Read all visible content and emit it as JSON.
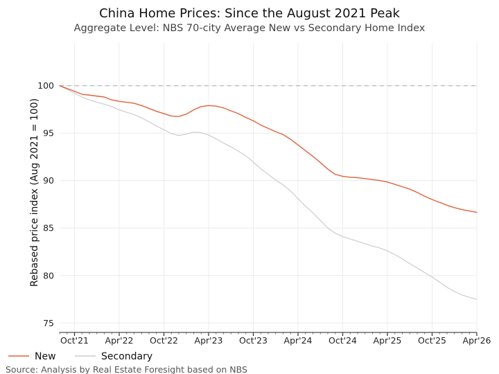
{
  "chart_data": {
    "type": "line",
    "title": "China Home Prices: Since the August 2021 Peak",
    "subtitle": "Aggregate Level: NBS 70-city Average New vs Secondary Home Index",
    "xlabel": "",
    "ylabel": "Rebased price index (Aug 2021 = 100)",
    "ylim": [
      74,
      104.5
    ],
    "yticks": [
      75,
      80,
      85,
      90,
      95,
      100
    ],
    "xlim": [
      "2021-08",
      "2026-04"
    ],
    "xticks": [
      {
        "date": "2021-10",
        "label": "Oct'21"
      },
      {
        "date": "2022-04",
        "label": "Apr'22"
      },
      {
        "date": "2022-10",
        "label": "Oct'22"
      },
      {
        "date": "2023-04",
        "label": "Apr'23"
      },
      {
        "date": "2023-10",
        "label": "Oct'23"
      },
      {
        "date": "2024-04",
        "label": "Apr'24"
      },
      {
        "date": "2024-10",
        "label": "Oct'24"
      },
      {
        "date": "2025-04",
        "label": "Apr'25"
      },
      {
        "date": "2025-10",
        "label": "Oct'25"
      },
      {
        "date": "2026-04",
        "label": "Apr'26"
      }
    ],
    "reference_line": {
      "y": 100,
      "style": "dashed"
    },
    "grid": true,
    "legend_position": "bottom-left",
    "source": "Source: Analysis by Real Estate Foresight based on NBS",
    "x": [
      "2021-08",
      "2021-09",
      "2021-10",
      "2021-11",
      "2021-12",
      "2022-01",
      "2022-02",
      "2022-03",
      "2022-04",
      "2022-05",
      "2022-06",
      "2022-07",
      "2022-08",
      "2022-09",
      "2022-10",
      "2022-11",
      "2022-12",
      "2023-01",
      "2023-02",
      "2023-03",
      "2023-04",
      "2023-05",
      "2023-06",
      "2023-07",
      "2023-08",
      "2023-09",
      "2023-10",
      "2023-11",
      "2023-12",
      "2024-01",
      "2024-02",
      "2024-03",
      "2024-04",
      "2024-05",
      "2024-06",
      "2024-07",
      "2024-08",
      "2024-09",
      "2024-10",
      "2024-11",
      "2024-12",
      "2025-01",
      "2025-02",
      "2025-03",
      "2025-04",
      "2025-05",
      "2025-06",
      "2025-07",
      "2025-08",
      "2025-09",
      "2025-10",
      "2025-11",
      "2025-12",
      "2026-01",
      "2026-02",
      "2026-03",
      "2026-04"
    ],
    "series": [
      {
        "name": "New",
        "color": "#e0623a",
        "values": [
          100.0,
          99.7,
          99.4,
          99.1,
          99.0,
          98.9,
          98.8,
          98.5,
          98.35,
          98.25,
          98.15,
          97.9,
          97.6,
          97.3,
          97.05,
          96.8,
          96.75,
          97.0,
          97.45,
          97.8,
          97.9,
          97.85,
          97.65,
          97.35,
          97.05,
          96.65,
          96.3,
          95.85,
          95.5,
          95.15,
          94.85,
          94.35,
          93.75,
          93.15,
          92.55,
          91.9,
          91.2,
          90.65,
          90.45,
          90.35,
          90.3,
          90.2,
          90.1,
          90.0,
          89.85,
          89.6,
          89.35,
          89.1,
          88.75,
          88.35,
          88.0,
          87.7,
          87.4,
          87.15,
          86.95,
          86.8,
          86.65
        ]
      },
      {
        "name": "Secondary",
        "color": "#cccccc",
        "values": [
          100.0,
          99.6,
          99.2,
          98.8,
          98.5,
          98.25,
          98.05,
          97.8,
          97.45,
          97.2,
          96.95,
          96.6,
          96.2,
          95.75,
          95.35,
          94.95,
          94.75,
          94.9,
          95.1,
          95.05,
          94.8,
          94.4,
          93.95,
          93.55,
          93.1,
          92.6,
          91.95,
          91.25,
          90.65,
          90.05,
          89.55,
          88.9,
          88.1,
          87.3,
          86.6,
          85.8,
          85.0,
          84.45,
          84.1,
          83.85,
          83.6,
          83.35,
          83.1,
          82.9,
          82.6,
          82.2,
          81.75,
          81.25,
          80.8,
          80.3,
          79.85,
          79.3,
          78.75,
          78.3,
          77.95,
          77.7,
          77.5
        ]
      }
    ]
  }
}
